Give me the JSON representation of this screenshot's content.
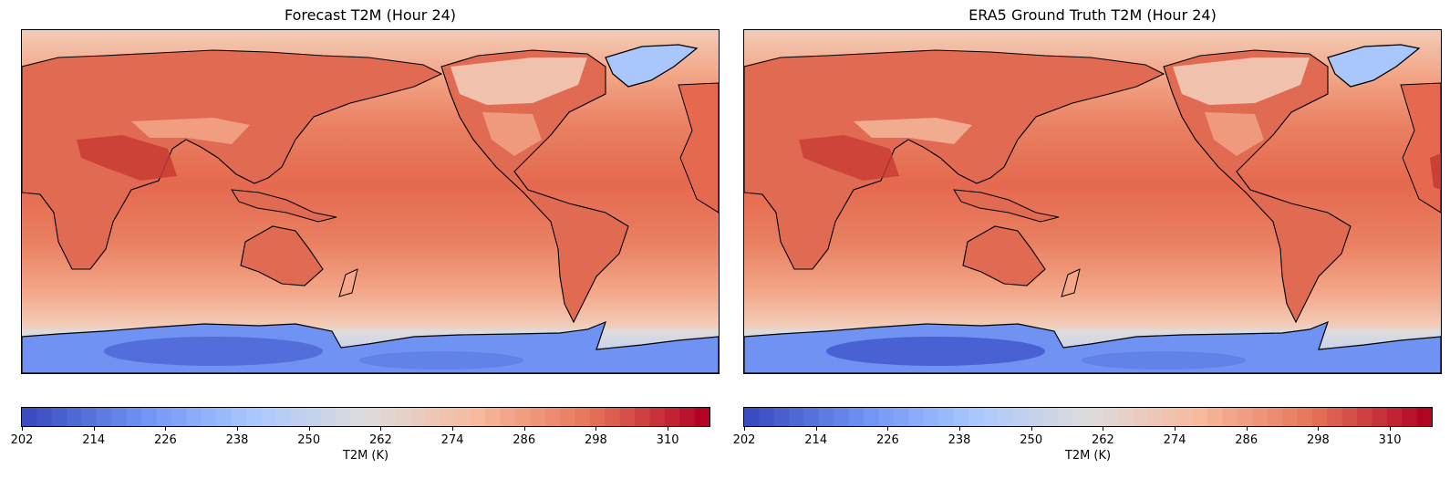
{
  "panels": [
    {
      "title": "Forecast T2M (Hour 24)",
      "colorbar": {
        "label": "T2M (K)",
        "min": 202,
        "max": 317,
        "ticks": [
          202,
          214,
          226,
          238,
          250,
          262,
          274,
          286,
          298,
          310
        ]
      }
    },
    {
      "title": "ERA5 Ground Truth T2M (Hour 24)",
      "colorbar": {
        "label": "T2M (K)",
        "min": 202,
        "max": 317,
        "ticks": [
          202,
          214,
          226,
          238,
          250,
          262,
          274,
          286,
          298,
          310
        ]
      }
    }
  ],
  "colormap": {
    "name": "coolwarm",
    "stops": [
      "#3b4cc0",
      "#6f92f3",
      "#aac7fd",
      "#dddcdc",
      "#f7b89c",
      "#e7745b",
      "#b40426"
    ]
  },
  "map": {
    "projection": "PlateCarree",
    "central_longitude": 150,
    "colors": {
      "ocean": "#e8775e",
      "tropics": "#e5694f",
      "mid_lat": "#f3a688",
      "high_lat": "#f2cbb7",
      "antarctica": "#6f92f3",
      "antarctica_core": "#4a62d2",
      "greenland": "#aac7fd",
      "hot_spot": "#c93b33",
      "coastline": "#000000"
    }
  }
}
